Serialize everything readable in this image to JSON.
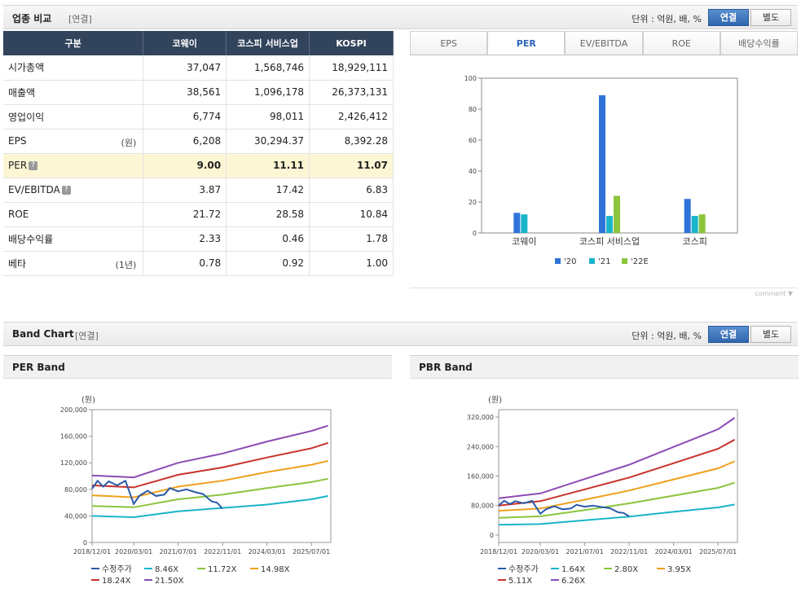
{
  "compare": {
    "title": "업종 비교",
    "sub": "[연결]",
    "unit": "단위 : 억원, 배, %",
    "toggle_on": "연결",
    "toggle_off": "별도",
    "headers": [
      "구분",
      "코웨이",
      "코스피 서비스업",
      "KOSPI"
    ],
    "rows": [
      {
        "label": "시가총액",
        "unit": "",
        "help": false,
        "values": [
          "37,047",
          "1,568,746",
          "18,929,111"
        ]
      },
      {
        "label": "매출액",
        "unit": "",
        "help": false,
        "values": [
          "38,561",
          "1,096,178",
          "26,373,131"
        ]
      },
      {
        "label": "영업이익",
        "unit": "",
        "help": false,
        "values": [
          "6,774",
          "98,011",
          "2,426,412"
        ]
      },
      {
        "label": "EPS",
        "unit": "(원)",
        "help": false,
        "values": [
          "6,208",
          "30,294.37",
          "8,392.28"
        ]
      },
      {
        "label": "PER",
        "unit": "",
        "help": true,
        "values": [
          "9.00",
          "11.11",
          "11.07"
        ]
      },
      {
        "label": "EV/EBITDA",
        "unit": "",
        "help": true,
        "values": [
          "3.87",
          "17.42",
          "6.83"
        ]
      },
      {
        "label": "ROE",
        "unit": "",
        "help": false,
        "values": [
          "21.72",
          "28.58",
          "10.84"
        ]
      },
      {
        "label": "배당수익률",
        "unit": "",
        "help": false,
        "values": [
          "2.33",
          "0.46",
          "1.78"
        ]
      },
      {
        "label": "베타",
        "unit": "(1년)",
        "help": false,
        "values": [
          "0.78",
          "0.92",
          "1.00"
        ]
      }
    ],
    "help_glyph": "?",
    "tabs": [
      "EPS",
      "PER",
      "EV/EBITDA",
      "ROE",
      "배당수익률"
    ],
    "active_tab": "PER",
    "comment": "comment ▼"
  },
  "band": {
    "title": "Band Chart",
    "sub": "[연결]",
    "unit": "단위 : 억원, 배, %",
    "toggle_on": "연결",
    "toggle_off": "별도",
    "per_title": "PER Band",
    "pbr_title": "PBR Band"
  },
  "chart_data": [
    {
      "type": "bar",
      "categories": [
        "코웨이",
        "코스피  서비스업",
        "코스피"
      ],
      "series": [
        {
          "name": "'20",
          "color": "#2f73d9",
          "values": [
            13,
            89,
            22
          ]
        },
        {
          "name": "'21",
          "color": "#19b5c9",
          "values": [
            12,
            11,
            11
          ]
        },
        {
          "name": "'22E",
          "color": "#8cc43c",
          "values": [
            null,
            24,
            12
          ]
        }
      ],
      "ylim": [
        0,
        100
      ],
      "yticks": [
        0,
        20,
        40,
        60,
        80,
        100
      ]
    },
    {
      "type": "line",
      "title": "PER Band",
      "ylabel": "(원)",
      "ylim": [
        0,
        200000
      ],
      "yticks": [
        "0",
        "40,000",
        "80,000",
        "120,000",
        "160,000",
        "200,000"
      ],
      "xticks": [
        "2018/12/01",
        "2020/03/01",
        "2021/07/01",
        "2022/11/01",
        "2024/03/01",
        "2025/07/01"
      ],
      "series": [
        {
          "name": "수정주가",
          "color": "#2a5aa8",
          "x": [
            "2018/12",
            "2019/02",
            "2019/04",
            "2019/06",
            "2019/09",
            "2019/12",
            "2020/03",
            "2020/05",
            "2020/08",
            "2020/11",
            "2021/02",
            "2021/04",
            "2021/07",
            "2021/10",
            "2022/01",
            "2022/04",
            "2022/07",
            "2022/09",
            "2022/11"
          ],
          "values": [
            81000,
            93000,
            84000,
            92000,
            86000,
            93000,
            58000,
            70000,
            78000,
            70000,
            72000,
            82000,
            77000,
            80000,
            76000,
            73000,
            62000,
            60000,
            51000
          ]
        },
        {
          "name": "8.46X",
          "color": "#19b5c9",
          "x": [
            "2018/12",
            "2020/03",
            "2021/07",
            "2022/11",
            "2024/03",
            "2025/07",
            "2026/01"
          ],
          "values": [
            40000,
            38000,
            47000,
            52000,
            57000,
            65000,
            70000
          ]
        },
        {
          "name": "11.72X",
          "color": "#8cc43c",
          "x": [
            "2018/12",
            "2020/03",
            "2021/07",
            "2022/11",
            "2024/03",
            "2025/07",
            "2026/01"
          ],
          "values": [
            55000,
            53000,
            65000,
            72000,
            82000,
            91000,
            96000
          ]
        },
        {
          "name": "14.98X",
          "color": "#f0a01e",
          "x": [
            "2018/12",
            "2020/03",
            "2021/07",
            "2022/11",
            "2024/03",
            "2025/07",
            "2026/01"
          ],
          "values": [
            71000,
            68000,
            84000,
            93000,
            106000,
            117000,
            123000
          ]
        },
        {
          "name": "18.24X",
          "color": "#c8322a",
          "x": [
            "2018/12",
            "2020/03",
            "2021/07",
            "2022/11",
            "2024/03",
            "2025/07",
            "2026/01"
          ],
          "values": [
            86000,
            83000,
            102000,
            113000,
            128000,
            142000,
            150000
          ]
        },
        {
          "name": "21.50X",
          "color": "#8b4bb4",
          "x": [
            "2018/12",
            "2020/03",
            "2021/07",
            "2022/11",
            "2024/03",
            "2025/07",
            "2026/01"
          ],
          "values": [
            101000,
            98000,
            120000,
            134000,
            152000,
            168000,
            176000
          ]
        }
      ]
    },
    {
      "type": "line",
      "title": "PBR Band",
      "ylabel": "(원)",
      "ylim": [
        -20000,
        340000
      ],
      "yticks": [
        "0",
        "80,000",
        "160,000",
        "240,000",
        "320,000"
      ],
      "xticks": [
        "2018/12/01",
        "2020/03/01",
        "2021/07/01",
        "2022/11/01",
        "2024/03/01",
        "2025/07/01"
      ],
      "series": [
        {
          "name": "수정주가",
          "color": "#2a5aa8",
          "x": [
            "2018/12",
            "2019/02",
            "2019/04",
            "2019/06",
            "2019/09",
            "2019/12",
            "2020/03",
            "2020/05",
            "2020/08",
            "2020/11",
            "2021/02",
            "2021/04",
            "2021/07",
            "2021/10",
            "2022/01",
            "2022/04",
            "2022/07",
            "2022/09",
            "2022/11"
          ],
          "values": [
            81000,
            93000,
            84000,
            92000,
            86000,
            93000,
            58000,
            70000,
            78000,
            70000,
            72000,
            82000,
            77000,
            80000,
            76000,
            73000,
            62000,
            60000,
            51000
          ]
        },
        {
          "name": "1.64X",
          "color": "#19b5c9",
          "x": [
            "2018/12",
            "2020/03",
            "2021/07",
            "2022/11",
            "2024/03",
            "2025/07",
            "2026/01"
          ],
          "values": [
            28000,
            30000,
            40000,
            50000,
            63000,
            75000,
            83000
          ]
        },
        {
          "name": "2.80X",
          "color": "#8cc43c",
          "x": [
            "2018/12",
            "2020/03",
            "2021/07",
            "2022/11",
            "2024/03",
            "2025/07",
            "2026/01"
          ],
          "values": [
            47000,
            51000,
            68000,
            86000,
            107000,
            128000,
            142000
          ]
        },
        {
          "name": "3.95X",
          "color": "#f0a01e",
          "x": [
            "2018/12",
            "2020/03",
            "2021/07",
            "2022/11",
            "2024/03",
            "2025/07",
            "2026/01"
          ],
          "values": [
            66000,
            72000,
            96000,
            121000,
            151000,
            181000,
            200000
          ]
        },
        {
          "name": "5.11X",
          "color": "#c8322a",
          "x": [
            "2018/12",
            "2020/03",
            "2021/07",
            "2022/11",
            "2024/03",
            "2025/07",
            "2026/01"
          ],
          "values": [
            80000,
            92000,
            124000,
            156000,
            195000,
            234000,
            259000
          ]
        },
        {
          "name": "6.26X",
          "color": "#8b4bb4",
          "x": [
            "2018/12",
            "2020/03",
            "2021/07",
            "2022/11",
            "2024/03",
            "2025/07",
            "2026/01"
          ],
          "values": [
            100000,
            113000,
            152000,
            191000,
            239000,
            287000,
            318000
          ]
        }
      ]
    }
  ]
}
